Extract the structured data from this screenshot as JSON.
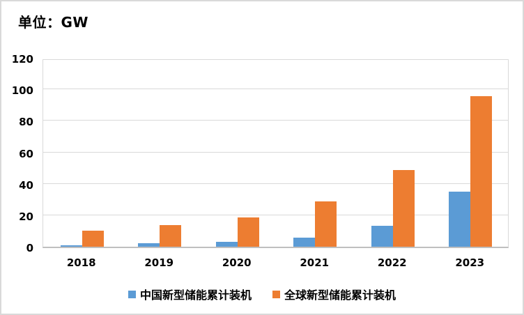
{
  "title": "单位：GW",
  "colors": {
    "china_series": "#5B9BD5",
    "global_series": "#ED7D31",
    "gridline": "#D9D9D9",
    "axis_line": "#BFBFBF",
    "text": "#000000",
    "frame_border": "#D9D9D9",
    "background": "#FFFFFF"
  },
  "chart_data": {
    "type": "bar",
    "title": "单位：GW",
    "categories": [
      "2018",
      "2019",
      "2020",
      "2021",
      "2022",
      "2023"
    ],
    "series": [
      {
        "key": "china",
        "name": "中国新型储能累计装机",
        "color": "#5B9BD5",
        "values": [
          1.1,
          2.1,
          3.3,
          5.7,
          13.1,
          35.1
        ]
      },
      {
        "key": "global",
        "name": "全球新型储能累计装机",
        "color": "#ED7D31",
        "values": [
          10.1,
          13.9,
          18.8,
          28.6,
          48.7,
          95.5
        ]
      }
    ],
    "xlabel": "",
    "ylabel": "",
    "ylim": [
      0,
      120
    ],
    "yticks": [
      0,
      20,
      40,
      60,
      80,
      100,
      120
    ],
    "grid": true,
    "legend_position": "bottom"
  }
}
